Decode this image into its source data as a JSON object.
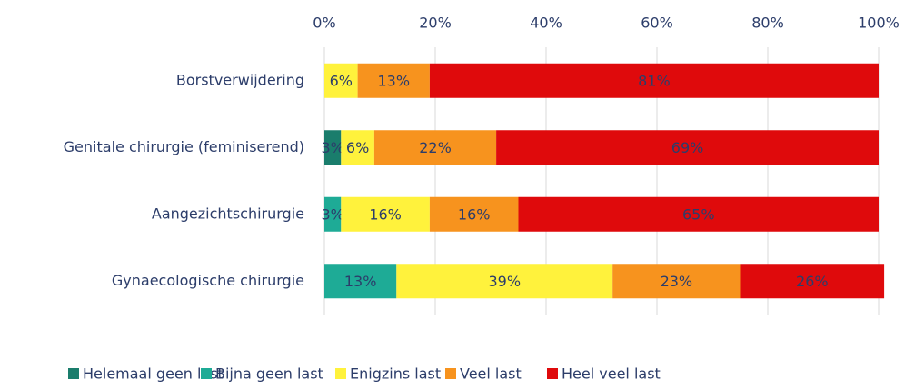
{
  "chart_data": {
    "type": "stacked-bar-horizontal",
    "categories": [
      "Borstverwijdering",
      "Genitale chirurgie (feminiserend)",
      "Aangezichtschirurgie",
      "Gynaecologische chirurgie"
    ],
    "series": [
      {
        "name": "Helemaal geen last",
        "color": "#1a7d6c",
        "values": [
          null,
          3,
          null,
          null
        ],
        "value_labels": [
          null,
          "3%",
          null,
          null
        ]
      },
      {
        "name": "Bijna geen last",
        "color": "#1eab96",
        "values": [
          null,
          null,
          3,
          13
        ],
        "value_labels": [
          null,
          null,
          "3%",
          "13%"
        ]
      },
      {
        "name": "Enigzins last",
        "color": "#fff23c",
        "values": [
          6,
          6,
          16,
          39
        ],
        "value_labels": [
          "6%",
          "6%",
          "16%",
          "39%"
        ]
      },
      {
        "name": "Veel last",
        "color": "#f7931e",
        "values": [
          13,
          22,
          16,
          23
        ],
        "value_labels": [
          "13%",
          "22%",
          "16%",
          "23%"
        ]
      },
      {
        "name": "Heel veel last",
        "color": "#df0a0c",
        "values": [
          81,
          69,
          65,
          26
        ],
        "value_labels": [
          "81%",
          "69%",
          "65%",
          "26%"
        ]
      }
    ],
    "xlim": [
      0,
      100
    ],
    "xticks": [
      {
        "value": 0,
        "label": "0%"
      },
      {
        "value": 20,
        "label": "20%"
      },
      {
        "value": 40,
        "label": "40%"
      },
      {
        "value": 60,
        "label": "60%"
      },
      {
        "value": 80,
        "label": "80%"
      },
      {
        "value": 100,
        "label": "100%"
      }
    ],
    "grid": true,
    "legend": "bottom"
  }
}
